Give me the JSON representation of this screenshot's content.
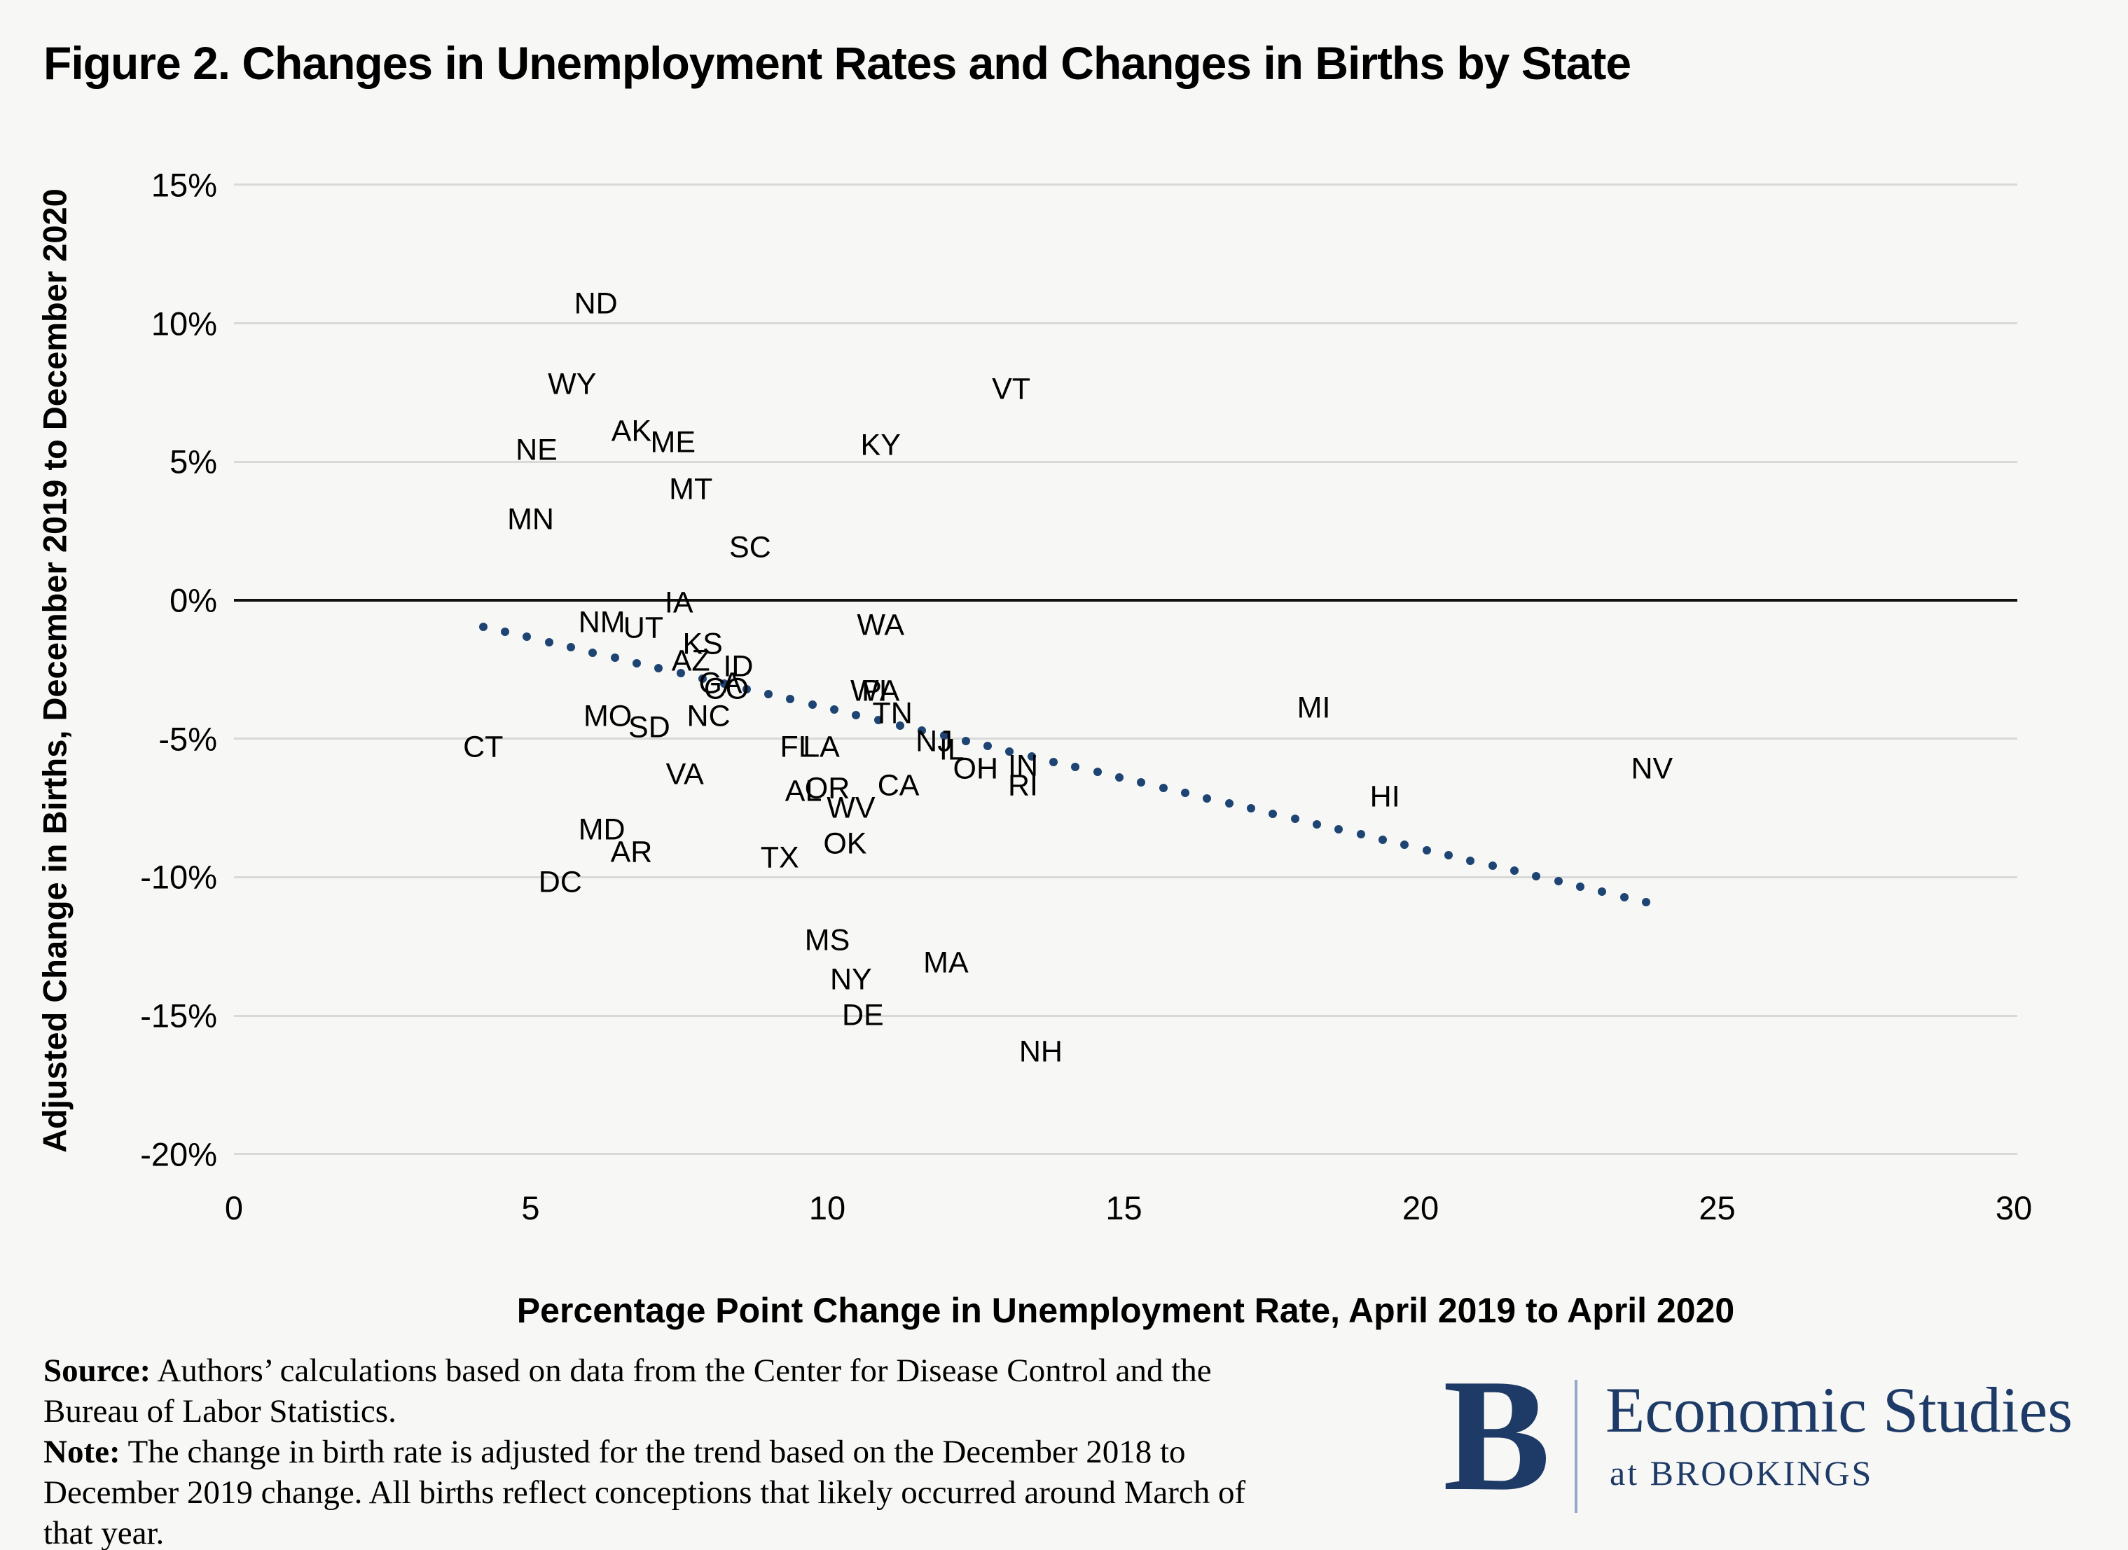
{
  "title": "Figure 2. Changes in Unemployment Rates and Changes in Births by State",
  "chart_data": {
    "type": "scatter",
    "title": "Figure 2. Changes in Unemployment Rates and Changes in Births by State",
    "xlabel": "Percentage Point Change in Unemployment Rate, April 2019 to April 2020",
    "ylabel": "Adjusted Change in Births, December 2019 to December 2020",
    "xlim": [
      0,
      30
    ],
    "ylim": [
      -20,
      15
    ],
    "x_ticks": [
      0,
      5,
      10,
      15,
      20,
      25,
      30
    ],
    "y_ticks": [
      15,
      10,
      5,
      0,
      -5,
      -10,
      -15,
      -20
    ],
    "y_tick_suffix": "%",
    "grid": "horizontal",
    "marker": "state-abbreviation-text",
    "label_color": "#000000",
    "trend_color": "#1d4472",
    "legend": "none",
    "points": [
      {
        "state": "ND",
        "x": 6.1,
        "y": 10.7
      },
      {
        "state": "WY",
        "x": 5.7,
        "y": 7.8
      },
      {
        "state": "VT",
        "x": 13.1,
        "y": 7.6
      },
      {
        "state": "AK",
        "x": 6.7,
        "y": 6.1
      },
      {
        "state": "ME",
        "x": 7.4,
        "y": 5.7
      },
      {
        "state": "KY",
        "x": 10.9,
        "y": 5.6
      },
      {
        "state": "NE",
        "x": 5.1,
        "y": 5.4
      },
      {
        "state": "MT",
        "x": 7.7,
        "y": 4.0
      },
      {
        "state": "MN",
        "x": 5.0,
        "y": 2.9
      },
      {
        "state": "SC",
        "x": 8.7,
        "y": 1.9
      },
      {
        "state": "IA",
        "x": 7.5,
        "y": -0.1
      },
      {
        "state": "NM",
        "x": 6.2,
        "y": -0.8
      },
      {
        "state": "WA",
        "x": 10.9,
        "y": -0.9
      },
      {
        "state": "UT",
        "x": 6.9,
        "y": -1.0
      },
      {
        "state": "KS",
        "x": 7.9,
        "y": -1.6
      },
      {
        "state": "AZ",
        "x": 7.7,
        "y": -2.2
      },
      {
        "state": "ID",
        "x": 8.5,
        "y": -2.4
      },
      {
        "state": "GA",
        "x": 8.2,
        "y": -3.0
      },
      {
        "state": "CO",
        "x": 8.3,
        "y": -3.2
      },
      {
        "state": "WI",
        "x": 10.7,
        "y": -3.3
      },
      {
        "state": "PA",
        "x": 10.9,
        "y": -3.3
      },
      {
        "state": "MI",
        "x": 18.2,
        "y": -3.9
      },
      {
        "state": "TN",
        "x": 11.1,
        "y": -4.1
      },
      {
        "state": "MO",
        "x": 6.3,
        "y": -4.2
      },
      {
        "state": "NC",
        "x": 8.0,
        "y": -4.2
      },
      {
        "state": "SD",
        "x": 7.0,
        "y": -4.6
      },
      {
        "state": "NJ",
        "x": 11.8,
        "y": -5.1
      },
      {
        "state": "CT",
        "x": 4.2,
        "y": -5.3
      },
      {
        "state": "FL",
        "x": 9.5,
        "y": -5.3
      },
      {
        "state": "LA",
        "x": 9.9,
        "y": -5.3
      },
      {
        "state": "IL",
        "x": 12.1,
        "y": -5.4
      },
      {
        "state": "IN",
        "x": 13.3,
        "y": -6.0
      },
      {
        "state": "OH",
        "x": 12.5,
        "y": -6.1
      },
      {
        "state": "NV",
        "x": 23.9,
        "y": -6.1
      },
      {
        "state": "VA",
        "x": 7.6,
        "y": -6.3
      },
      {
        "state": "RI",
        "x": 13.3,
        "y": -6.7
      },
      {
        "state": "CA",
        "x": 11.2,
        "y": -6.7
      },
      {
        "state": "OR",
        "x": 10.0,
        "y": -6.8
      },
      {
        "state": "AL",
        "x": 9.6,
        "y": -6.9
      },
      {
        "state": "HI",
        "x": 19.4,
        "y": -7.1
      },
      {
        "state": "WV",
        "x": 10.4,
        "y": -7.5
      },
      {
        "state": "MD",
        "x": 6.2,
        "y": -8.3
      },
      {
        "state": "OK",
        "x": 10.3,
        "y": -8.8
      },
      {
        "state": "AR",
        "x": 6.7,
        "y": -9.1
      },
      {
        "state": "TX",
        "x": 9.2,
        "y": -9.3
      },
      {
        "state": "DC",
        "x": 5.5,
        "y": -10.2
      },
      {
        "state": "MS",
        "x": 10.0,
        "y": -12.3
      },
      {
        "state": "NY",
        "x": 10.4,
        "y": -13.7
      },
      {
        "state": "MA",
        "x": 12.0,
        "y": -13.1
      },
      {
        "state": "DE",
        "x": 10.6,
        "y": -15.0
      },
      {
        "state": "NH",
        "x": 13.6,
        "y": -16.3
      }
    ],
    "trendline": {
      "style": "dotted",
      "x1": 4.2,
      "y1": -0.95,
      "x2": 23.8,
      "y2": -10.9
    }
  },
  "footer": {
    "lines": [
      {
        "bold": "Source:",
        "text": " Authors’ calculations based on data from the Center for Disease Control and the"
      },
      {
        "bold": "",
        "text": "Bureau of Labor Statistics."
      },
      {
        "bold": "Note:",
        "text": " The change in birth rate is adjusted for the trend based on the December 2018 to"
      },
      {
        "bold": "",
        "text": "December 2019 change. All births reflect conceptions that likely occurred around March of"
      },
      {
        "bold": "",
        "text": "that year."
      }
    ]
  },
  "logo": {
    "b": "B",
    "line1": "Economic Studies",
    "line2": "at BROOKINGS",
    "navy": "#1e3a66",
    "divider_color": "#93a9c9"
  }
}
